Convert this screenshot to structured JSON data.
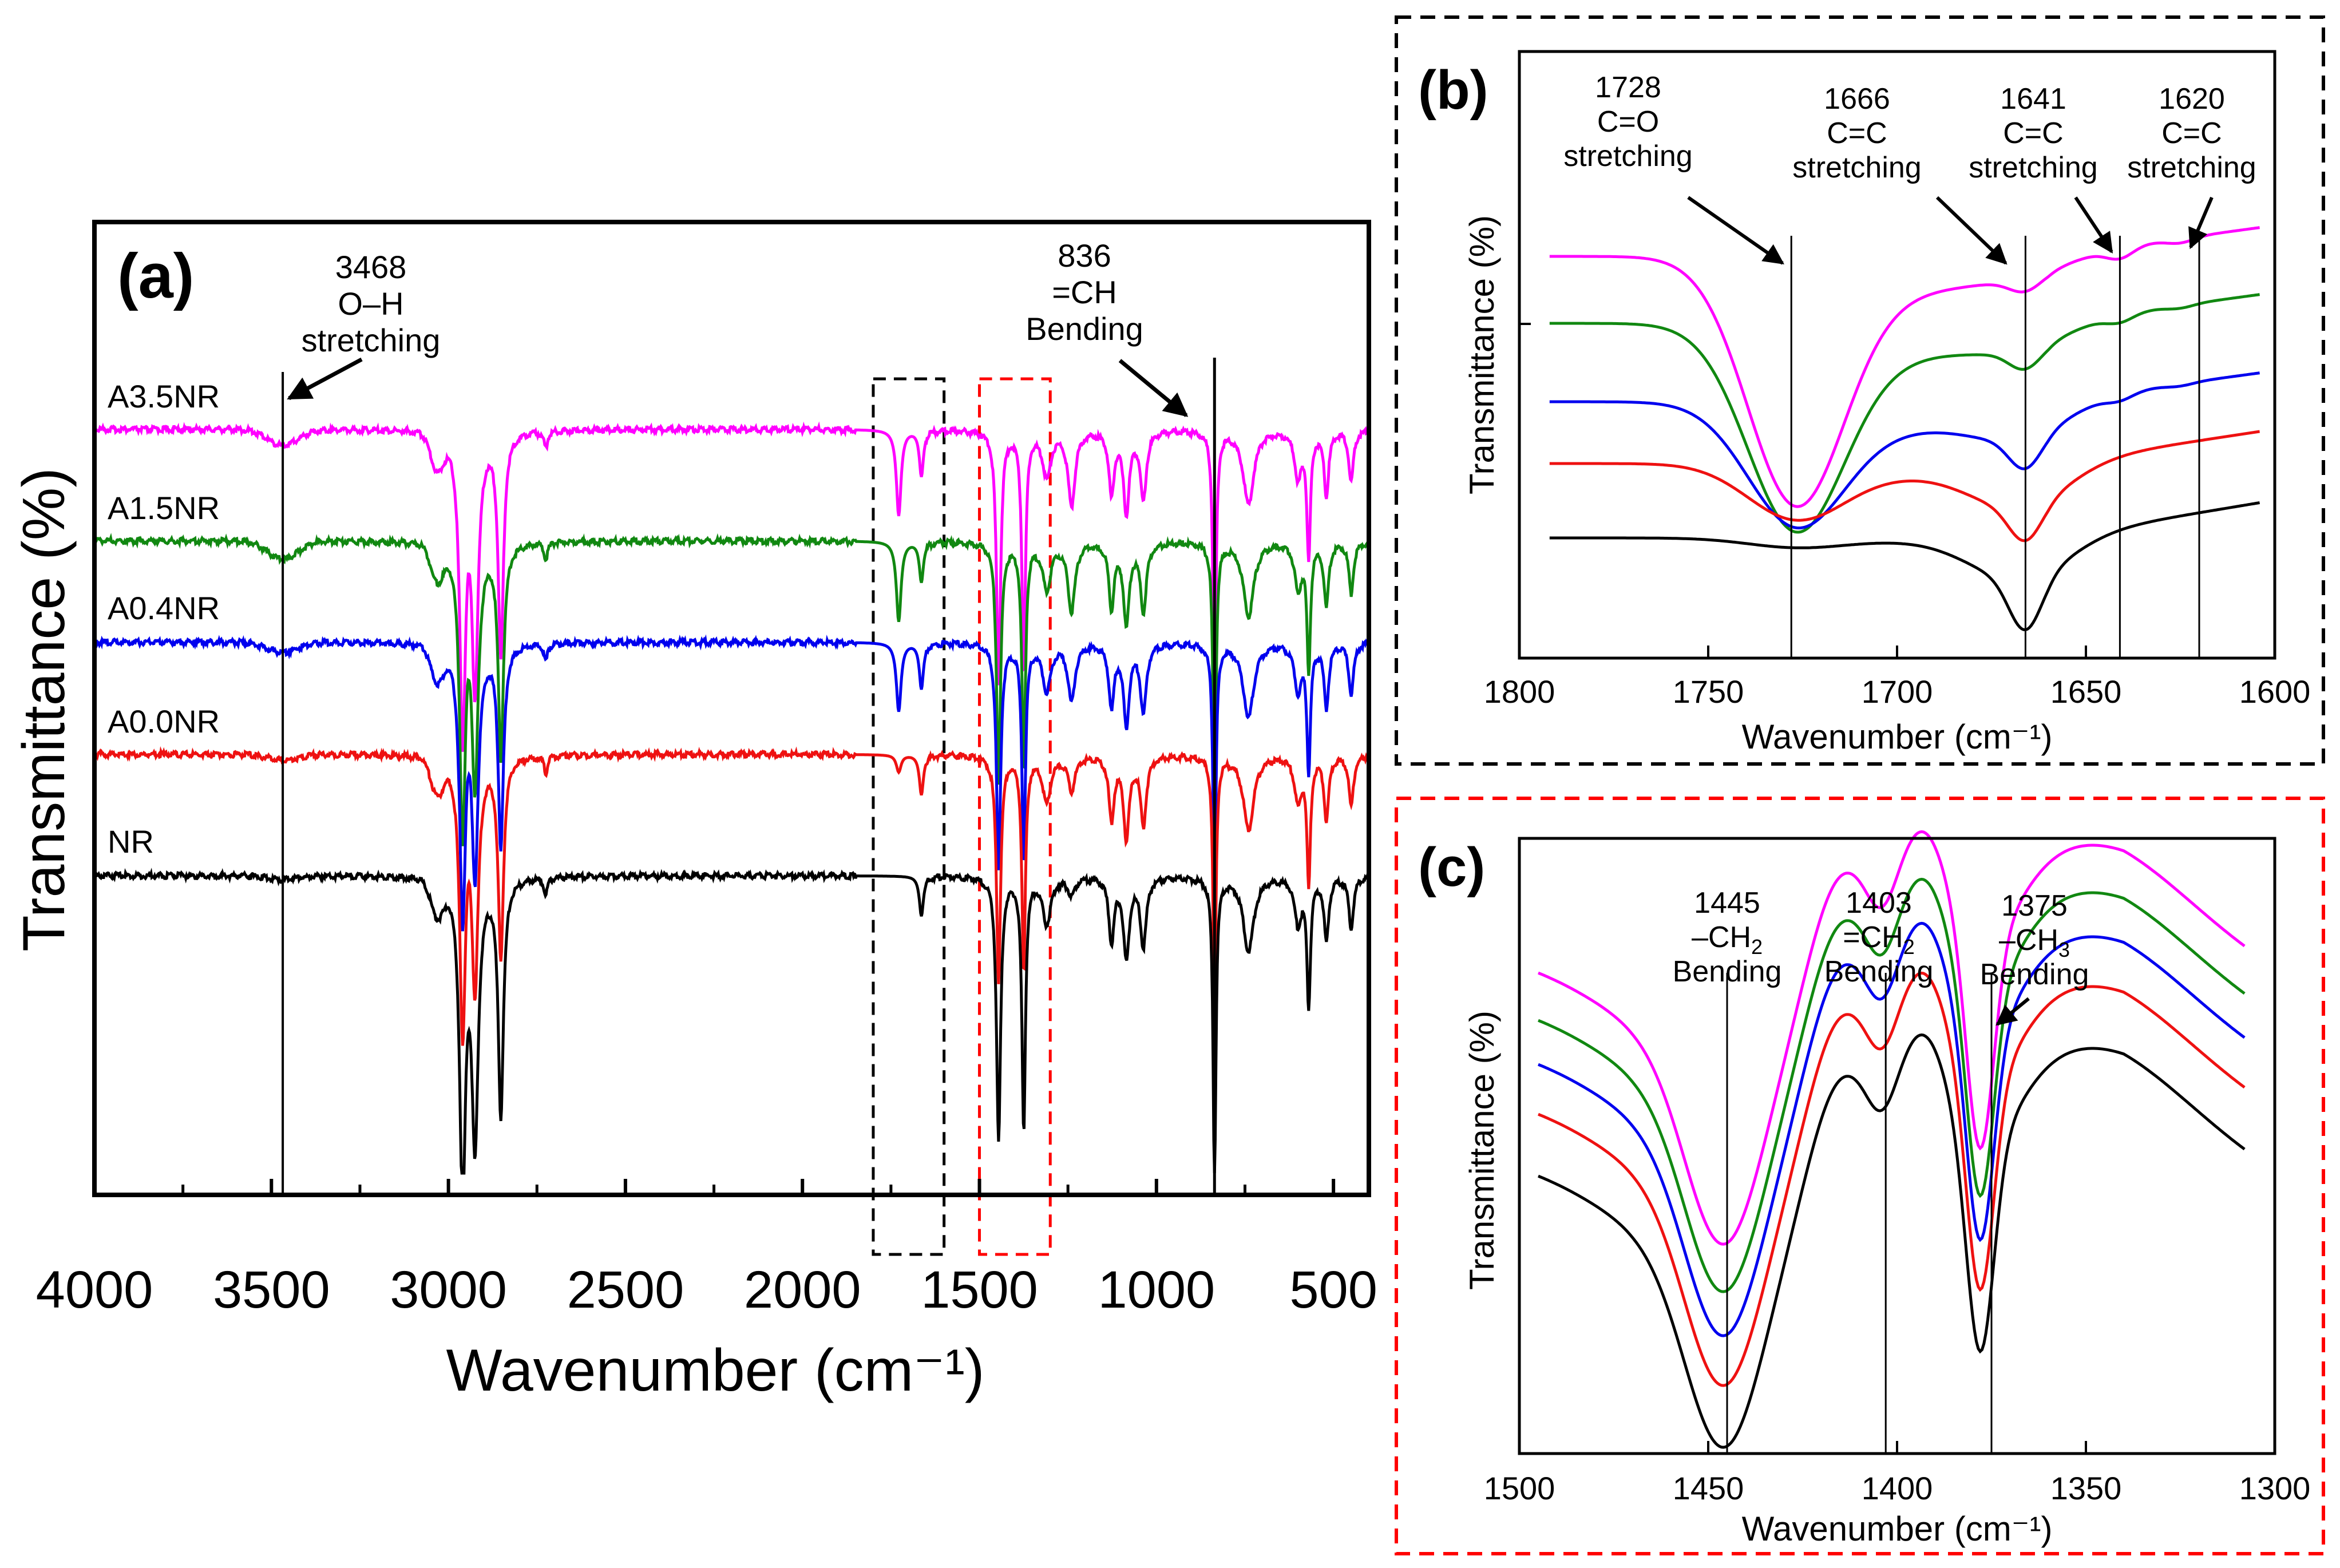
{
  "chart_data": [
    {
      "panel": "a",
      "type": "line",
      "panel_label": "(a)",
      "xlabel": "Wavenumber (cm⁻¹)",
      "ylabel": "Transmittance (%)",
      "xlim": [
        4000,
        400
      ],
      "xticks": [
        4000,
        3500,
        3000,
        2500,
        2000,
        1500,
        1000,
        500
      ],
      "series": [
        {
          "name": "A3.5NR",
          "color": "#ff00ff",
          "offset": 4.0
        },
        {
          "name": "A1.5NR",
          "color": "#118811",
          "offset": 3.0
        },
        {
          "name": "A0.4NR",
          "color": "#0000ee",
          "offset": 2.0
        },
        {
          "name": "A0.0NR",
          "color": "#ee1111",
          "offset": 1.0
        },
        {
          "name": "NR",
          "color": "#000000",
          "offset": 0.0
        }
      ],
      "annotations": [
        {
          "id": "oh",
          "wavenumber": 3468,
          "lines": [
            "3468",
            "O–H",
            "stretching"
          ]
        },
        {
          "id": "ch",
          "wavenumber": 836,
          "lines": [
            "836",
            "=CH",
            "Bending"
          ]
        }
      ],
      "highlight_boxes": [
        {
          "name": "black-dashed-box",
          "range": [
            1800,
            1600
          ],
          "color": "#000000"
        },
        {
          "name": "red-dashed-box",
          "range": [
            1500,
            1300
          ],
          "color": "#ff0000"
        }
      ]
    },
    {
      "panel": "b",
      "type": "line",
      "panel_label": "(b)",
      "xlabel": "Wavenumber (cm⁻¹)",
      "ylabel": "Transmittance (%)",
      "xlim": [
        1800,
        1600
      ],
      "xticks": [
        1800,
        1750,
        1700,
        1650,
        1600
      ],
      "annotations": [
        {
          "id": "b1728",
          "wavenumber": 1728,
          "lines": [
            "1728",
            "C=O",
            "stretching"
          ]
        },
        {
          "id": "b1666",
          "wavenumber": 1666,
          "lines": [
            "1666",
            "C=C",
            "stretching"
          ]
        },
        {
          "id": "b1641",
          "wavenumber": 1641,
          "lines": [
            "1641",
            "C=C",
            "stretching"
          ]
        },
        {
          "id": "b1620",
          "wavenumber": 1620,
          "lines": [
            "1620",
            "C=C",
            "stretching"
          ]
        }
      ]
    },
    {
      "panel": "c",
      "type": "line",
      "panel_label": "(c)",
      "xlabel": "Wavenumber (cm⁻¹)",
      "ylabel": "Transmittance (%)",
      "xlim": [
        1500,
        1300
      ],
      "xticks": [
        1500,
        1450,
        1400,
        1350,
        1300
      ],
      "annotations": [
        {
          "id": "c1445",
          "wavenumber": 1445,
          "lines": [
            "1445",
            "–CH",
            "Bending"
          ],
          "sub": "2"
        },
        {
          "id": "c1403",
          "wavenumber": 1403,
          "lines": [
            "1403",
            "=CH",
            "Bending"
          ],
          "sub": "2"
        },
        {
          "id": "c1375",
          "wavenumber": 1375,
          "lines": [
            "1375",
            "–CH",
            "Bending"
          ],
          "sub": "3"
        }
      ]
    }
  ]
}
